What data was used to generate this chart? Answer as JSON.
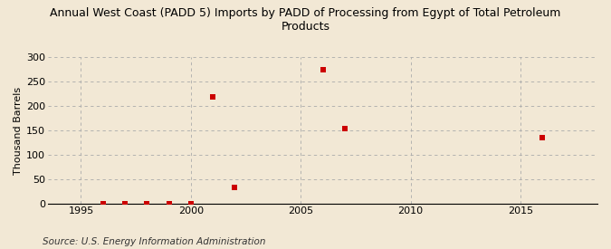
{
  "title": "Annual West Coast (PADD 5) Imports by PADD of Processing from Egypt of Total Petroleum\nProducts",
  "ylabel": "Thousand Barrels",
  "source": "Source: U.S. Energy Information Administration",
  "background_color": "#f2e8d5",
  "plot_bg_color": "#f2e8d5",
  "data_points": [
    {
      "year": 1996,
      "value": 0
    },
    {
      "year": 1997,
      "value": 0
    },
    {
      "year": 1998,
      "value": 0
    },
    {
      "year": 1999,
      "value": 0
    },
    {
      "year": 2000,
      "value": 0
    },
    {
      "year": 2001,
      "value": 218
    },
    {
      "year": 2002,
      "value": 33
    },
    {
      "year": 2006,
      "value": 275
    },
    {
      "year": 2007,
      "value": 153
    },
    {
      "year": 2016,
      "value": 135
    }
  ],
  "marker_color": "#cc0000",
  "marker_size": 4,
  "xlim": [
    1993.5,
    2018.5
  ],
  "ylim": [
    0,
    300
  ],
  "yticks": [
    0,
    50,
    100,
    150,
    200,
    250,
    300
  ],
  "xticks": [
    1995,
    2000,
    2005,
    2010,
    2015
  ],
  "grid_color": "#aaaaaa",
  "title_fontsize": 9,
  "axis_fontsize": 8,
  "source_fontsize": 7.5
}
